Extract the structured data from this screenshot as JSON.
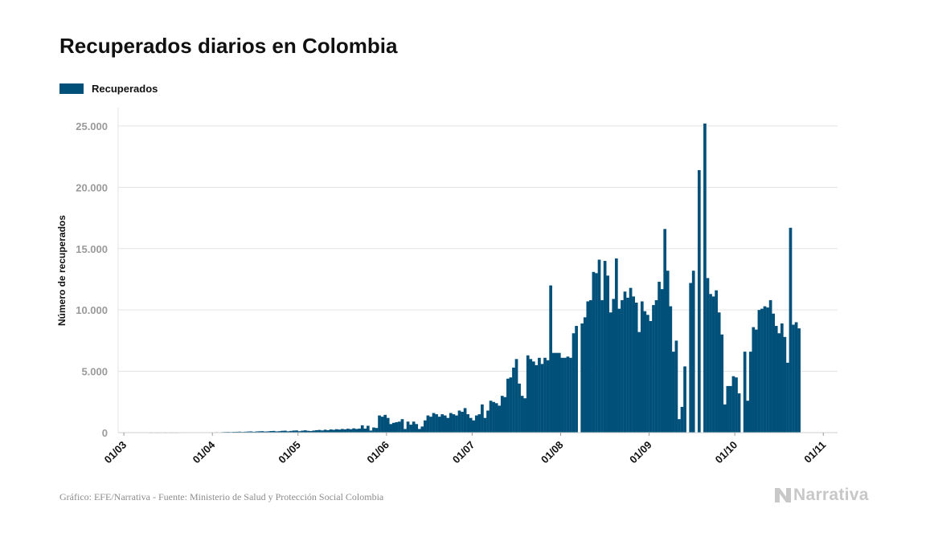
{
  "chart_data": {
    "type": "bar",
    "title": "Recuperados diarios en Colombia",
    "ylabel": "Número de recuperados",
    "xlabel": "",
    "ylim": [
      0,
      26500
    ],
    "yticks": [
      0,
      5000,
      10000,
      15000,
      20000,
      25000
    ],
    "ytick_labels": [
      "0",
      "5.000",
      "10.000",
      "15.000",
      "20.000",
      "25.000"
    ],
    "x_start": "2020-02-28",
    "x_end": "2020-11-06",
    "xticks": [
      "2020-03-01",
      "2020-04-01",
      "2020-05-01",
      "2020-06-01",
      "2020-07-01",
      "2020-08-01",
      "2020-09-01",
      "2020-10-01",
      "2020-11-01"
    ],
    "xtick_labels": [
      "01/03",
      "01/04",
      "01/05",
      "01/06",
      "01/07",
      "01/08",
      "01/09",
      "01/10",
      "01/11"
    ],
    "grid": true,
    "legend_position": "top-left",
    "series": [
      {
        "name": "Recuperados",
        "color": "#00507a",
        "start_date": "2020-03-08",
        "values": [
          0,
          0,
          2,
          0,
          1,
          3,
          0,
          2,
          5,
          2,
          4,
          3,
          8,
          5,
          10,
          7,
          12,
          9,
          15,
          18,
          22,
          30,
          20,
          35,
          25,
          40,
          30,
          45,
          55,
          60,
          50,
          65,
          70,
          80,
          60,
          75,
          90,
          100,
          70,
          95,
          110,
          120,
          90,
          105,
          130,
          140,
          100,
          120,
          150,
          160,
          110,
          140,
          170,
          180,
          120,
          160,
          190,
          150,
          130,
          170,
          200,
          220,
          180,
          240,
          200,
          260,
          230,
          280,
          250,
          300,
          270,
          320,
          280,
          350,
          300,
          330,
          600,
          330,
          560,
          170,
          420,
          380,
          1400,
          1300,
          1450,
          1200,
          700,
          800,
          850,
          900,
          1100,
          300,
          900,
          650,
          900,
          700,
          300,
          500,
          1000,
          1400,
          1300,
          1600,
          1500,
          1300,
          1500,
          1400,
          1200,
          1600,
          1500,
          1400,
          1800,
          1700,
          2000,
          1500,
          1200,
          1000,
          1400,
          1500,
          2300,
          1200,
          1800,
          2600,
          2500,
          2400,
          2200,
          3000,
          2900,
          4400,
          4500,
          5300,
          6000,
          4000,
          3000,
          2800,
          6300,
          6000,
          5800,
          5500,
          6100,
          5600,
          6100,
          5900,
          12000,
          6500,
          6500,
          6500,
          6100,
          6100,
          6200,
          6100,
          8100,
          8700,
          0,
          8900,
          9400,
          10700,
          10800,
          13100,
          13000,
          14100,
          10800,
          14000,
          12800,
          9800,
          10900,
          14200,
          10100,
          10800,
          11500,
          11000,
          11800,
          11100,
          10600,
          8200,
          10700,
          9900,
          9600,
          9100,
          10400,
          10800,
          12300,
          11700,
          16600,
          13200,
          10300,
          6600,
          7500,
          1100,
          2100,
          5400,
          0,
          12200,
          13200,
          0,
          21400,
          0,
          25200,
          12600,
          11300,
          11100,
          11600,
          9800,
          8000,
          2300,
          3800,
          3800,
          4600,
          4500,
          3200,
          0,
          6600,
          2600,
          6600,
          8600,
          8400,
          10000,
          10100,
          10300,
          10200,
          10800,
          9700,
          8700,
          8100,
          8900,
          7800,
          5700,
          16700,
          8800,
          9000,
          8500
        ]
      }
    ]
  },
  "footer": {
    "source": "Gráfico: EFE/Narrativa - Fuente: Ministerio de Salud y Protección Social Colombia",
    "logo_text": "Narrativa"
  }
}
